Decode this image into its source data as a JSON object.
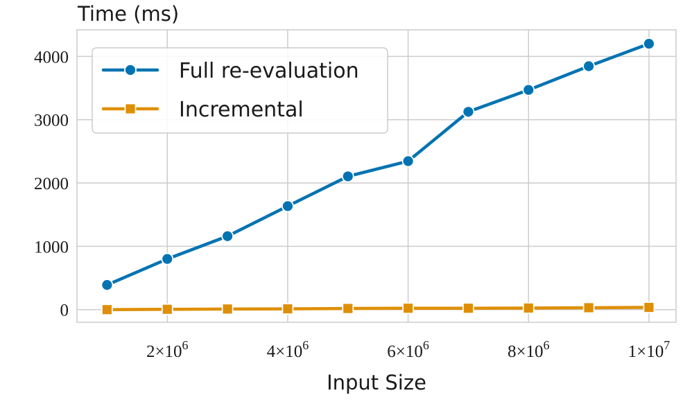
{
  "chart_data": {
    "type": "line",
    "xlabel": "Input Size",
    "ylabel": "Time (ms)",
    "xlim": [
      500000,
      10450000
    ],
    "ylim": [
      -200,
      4420
    ],
    "x": [
      1000000,
      2000000,
      3000000,
      4000000,
      5000000,
      6000000,
      7000000,
      8000000,
      9000000,
      10000000
    ],
    "x_ticks": [
      {
        "value": 2000000,
        "mantissa": "2",
        "base": "×10",
        "exp": "6"
      },
      {
        "value": 4000000,
        "mantissa": "4",
        "base": "×10",
        "exp": "6"
      },
      {
        "value": 6000000,
        "mantissa": "6",
        "base": "×10",
        "exp": "6"
      },
      {
        "value": 8000000,
        "mantissa": "8",
        "base": "×10",
        "exp": "6"
      },
      {
        "value": 10000000,
        "mantissa": "1",
        "base": "×10",
        "exp": "7"
      }
    ],
    "y_ticks": [
      {
        "value": 0,
        "label": "0"
      },
      {
        "value": 1000,
        "label": "1000"
      },
      {
        "value": 2000,
        "label": "2000"
      },
      {
        "value": 3000,
        "label": "3000"
      },
      {
        "value": 4000,
        "label": "4000"
      }
    ],
    "grid": true,
    "legend_position": "top-left",
    "series": [
      {
        "name": "Full re-evaluation",
        "color": "#0173b2",
        "marker": "circle",
        "values": [
          390,
          800,
          1160,
          1635,
          2105,
          2345,
          3125,
          3470,
          3845,
          4200
        ]
      },
      {
        "name": "Incremental",
        "color": "#de8f05",
        "marker": "square",
        "values": [
          0,
          5,
          10,
          12,
          18,
          22,
          22,
          25,
          30,
          35
        ]
      }
    ]
  }
}
